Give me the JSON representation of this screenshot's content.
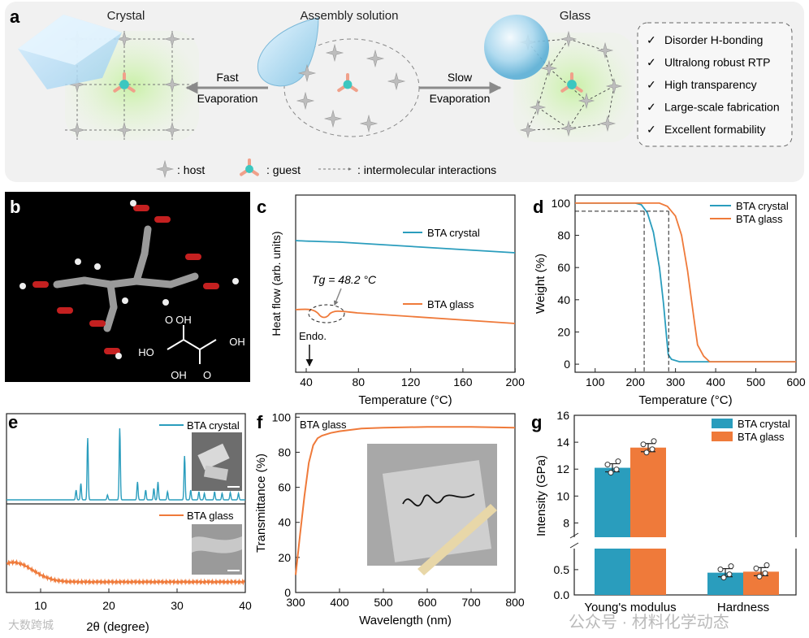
{
  "panel_labels": {
    "a": "a",
    "b": "b",
    "c": "c",
    "d": "d",
    "e": "e",
    "f": "f",
    "g": "g"
  },
  "panel_a": {
    "crystal_label": "Crystal",
    "solution_label": "Assembly solution",
    "glass_label": "Glass",
    "fast_arrow_line1": "Fast",
    "fast_arrow_line2": "Evaporation",
    "slow_arrow_line1": "Slow",
    "slow_arrow_line2": "Evaporation",
    "features": [
      "Disorder H-bonding",
      "Ultralong robust RTP",
      "High transparency",
      "Large-scale fabrication",
      "Excellent formability"
    ],
    "check_mark": "✓",
    "legend": {
      "host": ": host",
      "guest": ": guest",
      "interactions": ": intermolecular interactions"
    }
  },
  "panel_b": {
    "groups": {
      "top": "OH",
      "right": "OH",
      "left": "HO",
      "bottom": "OH"
    },
    "oxygen": "O"
  },
  "panel_c": {
    "ylabel": "Heat flow (arb. units)",
    "xlabel": "Temperature (°C)",
    "tg_label": "Tg = 48.2 °C",
    "endo_label": "Endo.",
    "legend": [
      "BTA crystal",
      "BTA glass"
    ],
    "xticks": [
      "40",
      "80",
      "120",
      "160",
      "200"
    ]
  },
  "panel_e": {
    "xlabel": "2θ (degree)",
    "legend": [
      "BTA crystal",
      "BTA glass"
    ],
    "xticks": [
      "10",
      "20",
      "30",
      "40"
    ]
  },
  "watermark": {
    "left": "大数跨城",
    "right": "公众号 · 材料化学动态"
  },
  "chart_data": [
    {
      "id": "d",
      "type": "line",
      "xlabel": "Temperature (°C)",
      "ylabel": "Weight (%)",
      "xlim": [
        50,
        600
      ],
      "ylim": [
        -5,
        105
      ],
      "xticks": [
        100,
        200,
        300,
        400,
        500,
        600
      ],
      "yticks": [
        0,
        20,
        40,
        60,
        80,
        100
      ],
      "series": [
        {
          "name": "BTA crystal",
          "color": "#2a9dbd",
          "x": [
            50,
            200,
            215,
            230,
            245,
            260,
            270,
            278,
            282,
            290,
            310,
            600
          ],
          "y": [
            100,
            100,
            99,
            94,
            82,
            60,
            38,
            16,
            6,
            3,
            1.5,
            1.5
          ]
        },
        {
          "name": "BTA glass",
          "color": "#ef7a3a",
          "x": [
            50,
            260,
            280,
            300,
            315,
            330,
            345,
            355,
            370,
            385,
            600
          ],
          "y": [
            100,
            100,
            98,
            92,
            80,
            58,
            30,
            12,
            5,
            1.5,
            1.5
          ]
        }
      ],
      "dashed_level": 95,
      "dashed_x": [
        222,
        283
      ]
    },
    {
      "id": "f",
      "type": "line",
      "title": "BTA glass",
      "xlabel": "Wavelength (nm)",
      "ylabel": "Transmittance (%)",
      "xlim": [
        300,
        800
      ],
      "ylim": [
        0,
        102
      ],
      "xticks": [
        300,
        400,
        500,
        600,
        700,
        800
      ],
      "yticks": [
        0,
        20,
        40,
        60,
        80,
        100
      ],
      "series": [
        {
          "name": "BTA glass",
          "color": "#ef7a3a",
          "x": [
            300,
            310,
            320,
            330,
            340,
            350,
            360,
            380,
            400,
            450,
            500,
            600,
            700,
            800
          ],
          "y": [
            10,
            33,
            55,
            74,
            84,
            88,
            89.5,
            91,
            92,
            93.5,
            94,
            94.5,
            94.5,
            94
          ]
        }
      ]
    },
    {
      "id": "g",
      "type": "bar",
      "ylabel": "Intensity (GPa)",
      "categories": [
        "Young's modulus",
        "Hardness"
      ],
      "series": [
        {
          "name": "BTA crystal",
          "color": "#2a9dbd",
          "values": [
            12.1,
            0.44
          ]
        },
        {
          "name": "BTA glass",
          "color": "#ef7a3a",
          "values": [
            13.6,
            0.46
          ]
        }
      ],
      "yticks_upper": [
        8,
        10,
        12,
        14,
        16
      ],
      "yticks_lower": [
        0.0,
        0.5
      ],
      "ylim_upper": [
        7,
        16
      ],
      "ylim_lower": [
        0,
        0.9
      ]
    }
  ]
}
